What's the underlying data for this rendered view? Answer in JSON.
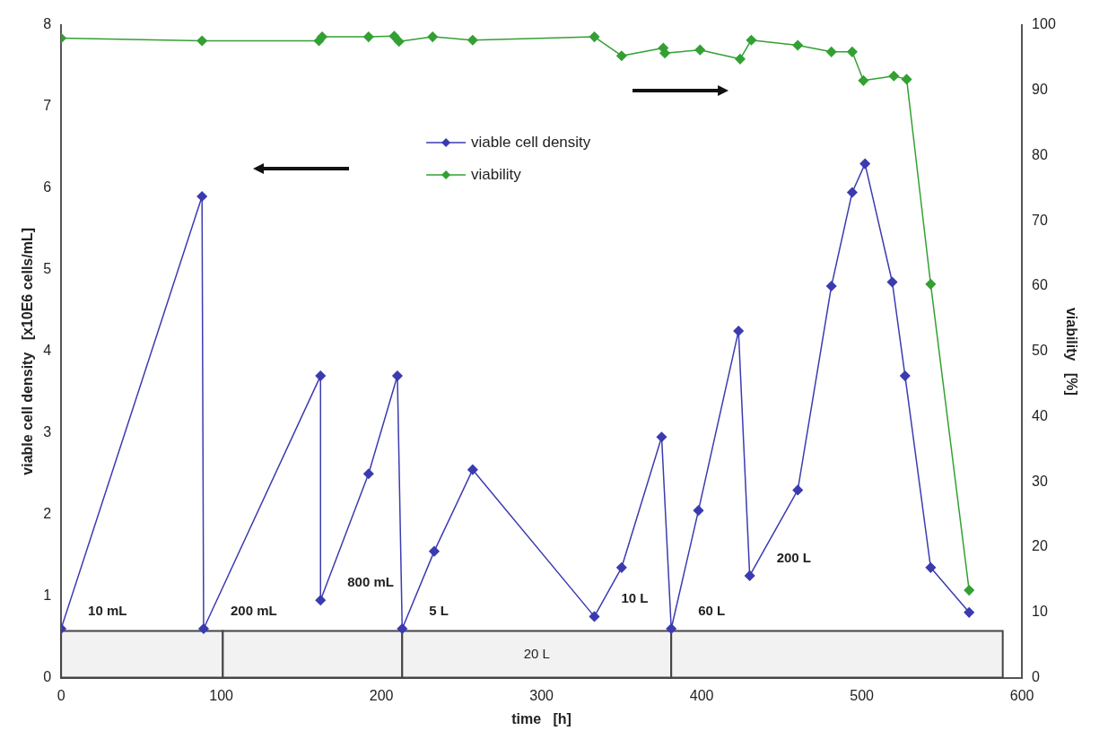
{
  "chart_data": {
    "type": "line",
    "xlabel": "time   [h]",
    "ylabel": "viable cell density   [x10E6 cells/mL]",
    "y2label": "viability   [%]",
    "xlim": [
      0,
      600
    ],
    "xticks": [
      0,
      100,
      200,
      300,
      400,
      500,
      600
    ],
    "ylim": [
      0,
      8
    ],
    "yticks": [
      0,
      1,
      2,
      3,
      4,
      5,
      6,
      7,
      8
    ],
    "y2lim": [
      0,
      100
    ],
    "y2ticks": [
      0,
      10,
      20,
      30,
      40,
      50,
      60,
      70,
      80,
      90,
      100
    ],
    "grid": false,
    "legend": "top",
    "marker": "diamond",
    "line_style": "solid",
    "series": [
      {
        "name": "viable cell density",
        "color": "#3b3bb0",
        "x": [
          0,
          88,
          89,
          162,
          162,
          192,
          210,
          213,
          233,
          257,
          333,
          350,
          375,
          381,
          398,
          423,
          430,
          460,
          481,
          494,
          502,
          519,
          527,
          543,
          567
        ],
        "values": [
          0.6,
          5.9,
          0.6,
          3.7,
          0.95,
          2.5,
          3.7,
          0.6,
          1.55,
          2.55,
          0.75,
          1.35,
          2.95,
          0.6,
          2.05,
          4.25,
          1.25,
          2.3,
          4.8,
          5.95,
          6.3,
          4.85,
          3.7,
          1.35,
          0.8
        ]
      },
      {
        "name": "viability",
        "color": "#33a033",
        "axis": "y2",
        "x": [
          0,
          88,
          161,
          163,
          192,
          208,
          211,
          232,
          257,
          333,
          350,
          376,
          377,
          399,
          424,
          431,
          460,
          481,
          494,
          501,
          520,
          528,
          543,
          567
        ],
        "values": [
          98,
          97.6,
          97.6,
          98.2,
          98.2,
          98.3,
          97.5,
          98.2,
          97.7,
          98.2,
          95.3,
          96.5,
          95.7,
          96.2,
          94.8,
          97.7,
          96.9,
          95.9,
          95.9,
          91.5,
          92.2,
          91.7,
          60.3,
          13.4
        ]
      }
    ],
    "bands": [
      {
        "axis": "x",
        "from": 0,
        "to": 101,
        "color": "#f2f2f2"
      },
      {
        "axis": "x",
        "from": 101,
        "to": 213,
        "color": "#f2f2f2"
      },
      {
        "axis": "x",
        "from": 213,
        "to": 381,
        "label": "20 L",
        "color": "#f2f2f2"
      },
      {
        "axis": "x",
        "from": 381,
        "to": 588,
        "color": "#f2f2f2"
      }
    ],
    "annotations": [
      {
        "text": "10 mL",
        "x": 0,
        "y": 0.6
      },
      {
        "text": "200 mL",
        "x": 89,
        "y": 0.6
      },
      {
        "text": "800 mL",
        "x": 162,
        "y": 0.95
      },
      {
        "text": "5 L",
        "x": 213,
        "y": 0.6
      },
      {
        "text": "10 L",
        "x": 333,
        "y": 0.75
      },
      {
        "text": "60 L",
        "x": 381,
        "y": 0.6
      },
      {
        "text": "200 L",
        "x": 430,
        "y": 1.25
      }
    ]
  }
}
